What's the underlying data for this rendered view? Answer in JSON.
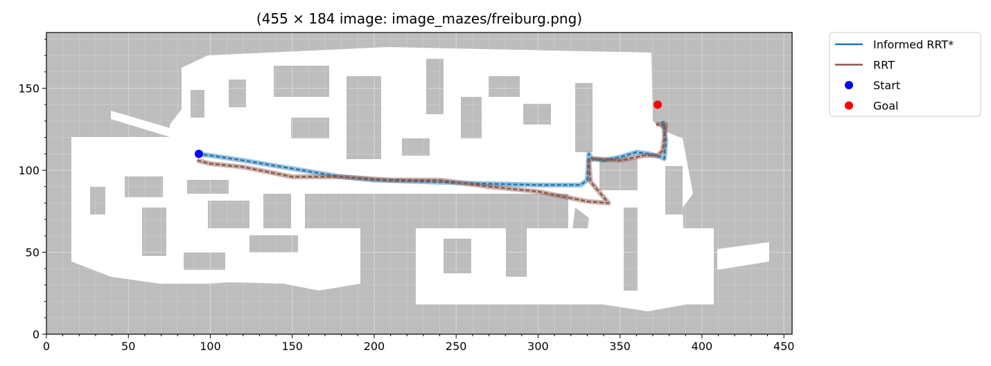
{
  "chart_data": {
    "type": "line",
    "title": "(455 × 184 image: image_mazes/freiburg.png)",
    "xlabel": "",
    "ylabel": "",
    "xlim": [
      0,
      455
    ],
    "ylim": [
      0,
      184
    ],
    "x_ticks": [
      0,
      50,
      100,
      150,
      200,
      250,
      300,
      350,
      400,
      450
    ],
    "y_ticks": [
      0,
      50,
      100,
      150
    ],
    "grid": true,
    "legend_placement": "outside-top-right",
    "background_image": "occupancy grid map (grey = obstacle, white = free space)",
    "series": [
      {
        "name": "Informed RRT*",
        "color": "#1f77b4",
        "x": [
          92,
          100,
          120,
          150,
          180,
          200,
          230,
          260,
          300,
          326,
          330,
          331,
          333,
          340,
          350,
          360,
          368,
          375,
          377,
          378,
          376
        ],
        "y": [
          110,
          109,
          106,
          101,
          96,
          94,
          93,
          92,
          91,
          91,
          94,
          110,
          107,
          106,
          108,
          111,
          110,
          108,
          107,
          118,
          130
        ]
      },
      {
        "name": "RRT",
        "color": "#8c564b",
        "x": [
          92,
          100,
          120,
          150,
          180,
          210,
          240,
          270,
          300,
          320,
          330,
          343,
          332,
          331,
          335,
          350,
          365,
          373,
          376,
          378,
          372
        ],
        "y": [
          106,
          104,
          102,
          96,
          96,
          94,
          94,
          90,
          87,
          83,
          81,
          80,
          93,
          106,
          107,
          106,
          109,
          109,
          112,
          128,
          128
        ]
      }
    ],
    "points": [
      {
        "name": "Start",
        "color": "#0000ff",
        "x": 93,
        "y": 110
      },
      {
        "name": "Goal",
        "color": "#ff0000",
        "x": 373,
        "y": 140
      }
    ]
  }
}
